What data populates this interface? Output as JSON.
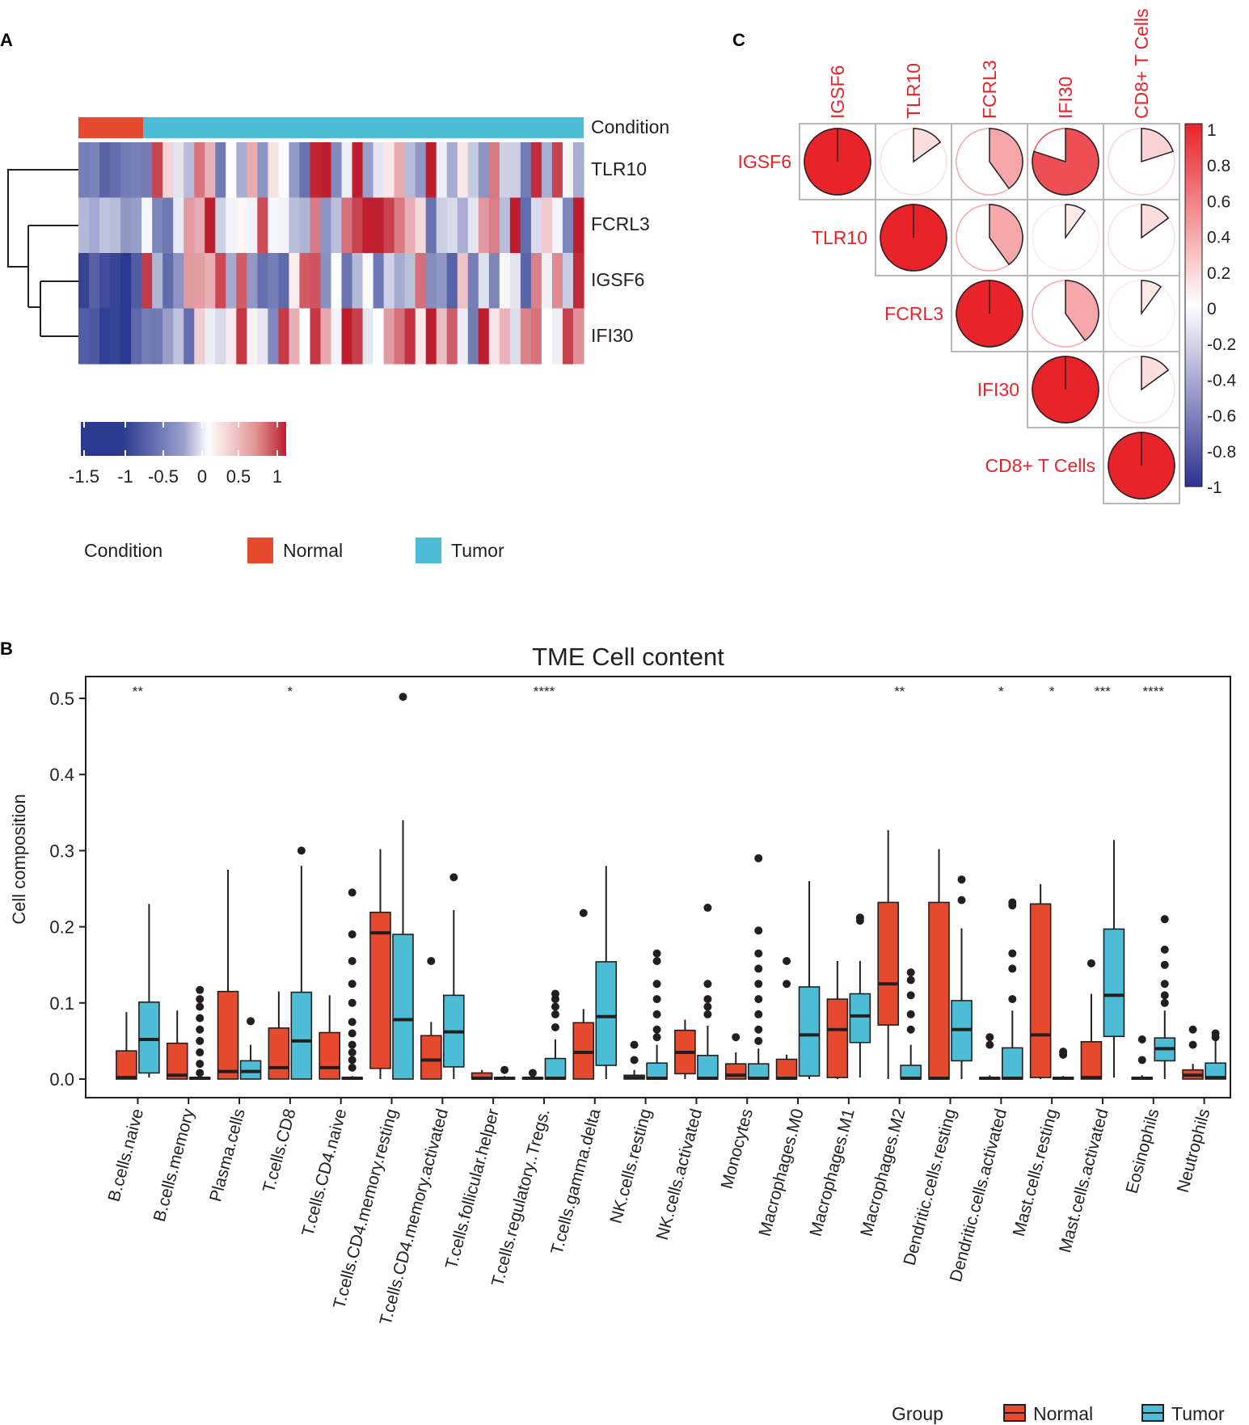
{
  "panels": {
    "a": "A",
    "b": "B",
    "c": "C"
  },
  "colors": {
    "normal": "#e64a2e",
    "tumor": "#4dbdd5",
    "heat_low": "#2b3990",
    "heat_mid": "#ffffff",
    "heat_high": "#be1e2d",
    "corr_pos": "#e8232a",
    "corr_neg": "#2e3192"
  },
  "heatmap": {
    "annotation_label": "Condition",
    "genes": [
      "TLR10",
      "FCRL3",
      "IGSF6",
      "IFI30"
    ],
    "normal_count": 6,
    "tumor_count": 42,
    "colorbar_ticks": [
      "-1.5",
      "-1",
      "-0.5",
      "0",
      "0.5",
      "1"
    ],
    "legend": {
      "title": "Condition",
      "normal": "Normal",
      "tumor": "Tumor"
    }
  },
  "correlation": {
    "labels": [
      "IGSF6",
      "TLR10",
      "FCRL3",
      "IFI30",
      "CD8+ T Cells"
    ],
    "matrix": [
      [
        1.0,
        0.15,
        0.4,
        0.8,
        0.2
      ],
      [
        0.15,
        1.0,
        0.4,
        0.1,
        0.15
      ],
      [
        0.4,
        0.4,
        1.0,
        0.4,
        0.1
      ],
      [
        0.8,
        0.1,
        0.4,
        1.0,
        0.15
      ],
      [
        0.2,
        0.15,
        0.1,
        0.15,
        1.0
      ]
    ],
    "colorbar_ticks": [
      "1",
      "0.8",
      "0.6",
      "0.4",
      "0.2",
      "0",
      "-0.2",
      "-0.4",
      "-0.6",
      "-0.8",
      "-1"
    ]
  },
  "chart_data": {
    "type": "box",
    "title": "TME Cell content",
    "ylabel": "Cell composition",
    "xlabel": "",
    "ylim": [
      0,
      0.52
    ],
    "yticks": [
      "0.0",
      "0.1",
      "0.2",
      "0.3",
      "0.4",
      "0.5"
    ],
    "categories": [
      "B.cells.naive",
      "B.cells.memory",
      "Plasma.cells",
      "T.cells.CD8",
      "T.cells.CD4.naive",
      "T.cells.CD4.memory.resting",
      "T.cells.CD4.memory.activated",
      "T.cells.follicular.helper",
      "T.cells.regulatory..Tregs.",
      "T.cells.gamma.delta",
      "NK.cells.resting",
      "NK.cells.activated",
      "Monocytes",
      "Macrophages.M0",
      "Macrophages.M1",
      "Macrophages.M2",
      "Dendritic.cells.resting",
      "Dendritic.cells.activated",
      "Mast.cells.resting",
      "Mast.cells.activated",
      "Eosinophils",
      "Neutrophils"
    ],
    "significance": [
      "**",
      "",
      "",
      "*",
      "",
      "",
      "",
      "",
      "****",
      "",
      "",
      "",
      "",
      "",
      "",
      "**",
      "",
      "*",
      "*",
      "***",
      "****",
      ""
    ],
    "legend": {
      "title": "Group",
      "normal": "Normal",
      "tumor": "Tumor"
    },
    "series": [
      {
        "name": "Normal",
        "boxes": [
          [
            0,
            0,
            0.002,
            0.037,
            0.088
          ],
          [
            0,
            0,
            0.005,
            0.047,
            0.09
          ],
          [
            0,
            0,
            0.01,
            0.115,
            0.275
          ],
          [
            0,
            0,
            0.015,
            0.067,
            0.115
          ],
          [
            0,
            0,
            0.015,
            0.061,
            0.11
          ],
          [
            0,
            0.014,
            0.192,
            0.219,
            0.302
          ],
          [
            0,
            0,
            0.025,
            0.057,
            0.075
          ],
          [
            0,
            0,
            0.001,
            0.008,
            0.012
          ],
          [
            0,
            0,
            0.001,
            0.002,
            0.005
          ],
          [
            0,
            0,
            0.035,
            0.074,
            0.092
          ],
          [
            0,
            0,
            0.002,
            0.005,
            0.012
          ],
          [
            0,
            0.007,
            0.035,
            0.064,
            0.078
          ],
          [
            0,
            0,
            0.005,
            0.02,
            0.035
          ],
          [
            0,
            0,
            0.001,
            0.026,
            0.032
          ],
          [
            0,
            0.002,
            0.065,
            0.105,
            0.155
          ],
          [
            0,
            0.071,
            0.125,
            0.232,
            0.327
          ],
          [
            0,
            0,
            0.001,
            0.232,
            0.302
          ],
          [
            0,
            0,
            0.001,
            0.002,
            0.005
          ],
          [
            0,
            0.002,
            0.058,
            0.23,
            0.256
          ],
          [
            0,
            0,
            0.002,
            0.049,
            0.112
          ],
          [
            0,
            0,
            0.001,
            0.002,
            0.005
          ],
          [
            0,
            0,
            0.005,
            0.012,
            0.02
          ]
        ],
        "outliers": [
          [],
          [],
          [],
          [],
          [],
          [],
          [
            0.155
          ],
          [],
          [
            0.008
          ],
          [
            0.218
          ],
          [
            0.045,
            0.025
          ],
          [],
          [
            0.055
          ],
          [
            0.155,
            0.125
          ],
          [],
          [],
          [],
          [
            0.055,
            0.045
          ],
          [],
          [
            0.152
          ],
          [
            0.052,
            0.025
          ],
          [
            0.065,
            0.045
          ]
        ]
      },
      {
        "name": "Tumor",
        "boxes": [
          [
            0.002,
            0.008,
            0.052,
            0.101,
            0.23
          ],
          [
            0,
            0,
            0.001,
            0.002,
            0.008
          ],
          [
            0,
            0,
            0.01,
            0.024,
            0.045
          ],
          [
            0,
            0,
            0.05,
            0.114,
            0.28
          ],
          [
            0,
            0,
            0.001,
            0.002,
            0.004
          ],
          [
            0,
            0,
            0.078,
            0.19,
            0.34
          ],
          [
            0,
            0.016,
            0.062,
            0.11,
            0.222
          ],
          [
            0,
            0,
            0.001,
            0.002,
            0.004
          ],
          [
            0,
            0,
            0.001,
            0.027,
            0.052
          ],
          [
            0,
            0.018,
            0.082,
            0.154,
            0.28
          ],
          [
            0,
            0,
            0.001,
            0.021,
            0.045
          ],
          [
            0,
            0,
            0.001,
            0.031,
            0.07
          ],
          [
            0,
            0,
            0.001,
            0.02,
            0.04
          ],
          [
            0,
            0.004,
            0.058,
            0.121,
            0.26
          ],
          [
            0.002,
            0.048,
            0.083,
            0.112,
            0.155
          ],
          [
            0,
            0,
            0.001,
            0.018,
            0.045
          ],
          [
            0,
            0.024,
            0.065,
            0.103,
            0.198
          ],
          [
            0,
            0,
            0.001,
            0.041,
            0.09
          ],
          [
            0,
            0,
            0.001,
            0.002,
            0.004
          ],
          [
            0.002,
            0.056,
            0.11,
            0.197,
            0.314
          ],
          [
            0,
            0.024,
            0.04,
            0.054,
            0.09
          ],
          [
            0,
            0,
            0.002,
            0.021,
            0.05
          ]
        ],
        "outliers": [
          [],
          [
            0.117,
            0.105,
            0.095,
            0.08,
            0.065,
            0.05,
            0.035,
            0.02,
            0.008
          ],
          [
            0.076
          ],
          [
            0.3
          ],
          [
            0.245,
            0.19,
            0.155,
            0.125,
            0.1,
            0.075,
            0.06,
            0.045,
            0.035,
            0.025,
            0.015
          ],
          [
            0.502
          ],
          [
            0.265
          ],
          [
            0.012
          ],
          [
            0.112,
            0.105,
            0.095,
            0.085,
            0.068
          ],
          [],
          [
            0.165,
            0.155,
            0.125,
            0.105,
            0.085,
            0.065,
            0.055
          ],
          [
            0.225,
            0.125,
            0.105,
            0.095,
            0.085
          ],
          [
            0.29,
            0.195,
            0.165,
            0.145,
            0.125,
            0.105,
            0.085,
            0.065,
            0.05
          ],
          [],
          [
            0.212,
            0.208
          ],
          [
            0.14,
            0.13,
            0.11,
            0.085,
            0.065
          ],
          [
            0.262,
            0.235
          ],
          [
            0.232,
            0.228,
            0.165,
            0.145,
            0.105
          ],
          [
            0.036,
            0.032
          ],
          [],
          [
            0.21,
            0.17,
            0.15,
            0.125,
            0.11,
            0.1
          ],
          [
            0.06,
            0.055
          ]
        ]
      }
    ]
  }
}
